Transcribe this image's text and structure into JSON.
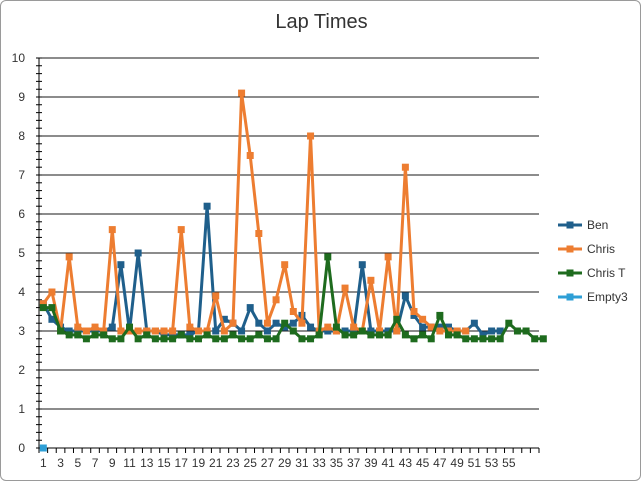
{
  "chart_data": {
    "type": "line",
    "title": "Lap Times",
    "xlabel": "",
    "ylabel": "",
    "ylim": [
      0,
      10
    ],
    "yticks": [
      0,
      1,
      2,
      3,
      4,
      5,
      6,
      7,
      8,
      9,
      10
    ],
    "x_tick_labels": [
      "1",
      "3",
      "5",
      "7",
      "9",
      "11",
      "13",
      "15",
      "17",
      "19",
      "21",
      "23",
      "25",
      "27",
      "29",
      "31",
      "33",
      "35",
      "37",
      "39",
      "41",
      "43",
      "45",
      "47",
      "49",
      "51",
      "53",
      "55"
    ],
    "grid": true,
    "legend_position": "right",
    "x_max": 58,
    "series": [
      {
        "name": "Ben",
        "color": "#1f5f8b",
        "values": [
          3.7,
          3.3,
          3.1,
          3.0,
          3.0,
          3.0,
          3.0,
          3.0,
          3.1,
          4.7,
          3.0,
          5.0,
          3.0,
          3.0,
          2.9,
          2.9,
          2.9,
          2.9,
          3.0,
          6.2,
          3.0,
          3.3,
          3.2,
          3.0,
          3.6,
          3.2,
          3.0,
          3.2,
          3.1,
          3.2,
          3.4,
          3.1,
          3.0,
          3.0,
          3.0,
          3.0,
          3.0,
          4.7,
          3.0,
          3.0,
          3.0,
          3.0,
          3.9,
          3.4,
          3.1,
          3.1,
          3.1,
          3.1,
          3.0,
          3.0,
          3.2,
          2.9,
          3.0,
          3.0
        ]
      },
      {
        "name": "Chris",
        "color": "#ed7d31",
        "values": [
          3.7,
          4.0,
          3.0,
          4.9,
          3.1,
          3.0,
          3.1,
          3.0,
          5.6,
          3.0,
          3.0,
          3.0,
          3.0,
          3.0,
          3.0,
          3.0,
          5.6,
          3.1,
          3.0,
          3.0,
          3.9,
          3.0,
          3.2,
          9.1,
          7.5,
          5.5,
          3.2,
          3.8,
          4.7,
          3.5,
          3.2,
          8.0,
          3.0,
          3.1,
          3.0,
          4.1,
          3.1,
          3.0,
          4.3,
          3.0,
          4.9,
          3.0,
          7.2,
          3.5,
          3.3,
          3.1,
          3.0,
          3.0,
          3.0,
          3.0
        ]
      },
      {
        "name": "Chris T",
        "color": "#1e6b1e",
        "values": [
          3.6,
          3.6,
          3.0,
          2.9,
          2.9,
          2.8,
          2.9,
          2.9,
          2.8,
          2.8,
          3.1,
          2.8,
          2.9,
          2.8,
          2.8,
          2.8,
          2.9,
          2.8,
          2.8,
          2.9,
          2.8,
          2.8,
          2.9,
          2.8,
          2.8,
          2.9,
          2.8,
          2.8,
          3.2,
          3.0,
          2.8,
          2.8,
          2.9,
          4.9,
          3.1,
          2.9,
          2.9,
          3.0,
          2.9,
          2.9,
          2.9,
          3.3,
          2.9,
          2.8,
          2.9,
          2.8,
          3.4,
          2.9,
          2.9,
          2.8,
          2.8,
          2.8,
          2.8,
          2.8,
          3.2,
          3.0,
          3.0,
          2.8,
          2.8
        ]
      },
      {
        "name": "Empty3",
        "color": "#2e9fd6",
        "values": [
          0
        ]
      }
    ]
  }
}
